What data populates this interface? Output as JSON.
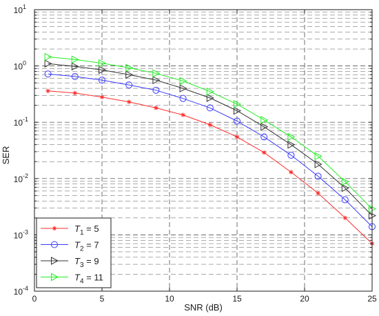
{
  "chart_data": {
    "type": "line",
    "title": "",
    "xlabel": "SNR (dB)",
    "ylabel": "SER",
    "xlim": [
      0,
      25
    ],
    "ylim": [
      0.0001,
      10
    ],
    "yscale": "log",
    "grid": true,
    "legend_position": "bottom-left",
    "xticks": [
      "0",
      "5",
      "10",
      "15",
      "20",
      "25"
    ],
    "yticks": [
      {
        "base": "10",
        "exp": "-4"
      },
      {
        "base": "10",
        "exp": "-3"
      },
      {
        "base": "10",
        "exp": "-2"
      },
      {
        "base": "10",
        "exp": "-1"
      },
      {
        "base": "10",
        "exp": "0"
      },
      {
        "base": "10",
        "exp": "1"
      }
    ],
    "x": [
      1,
      3,
      5,
      7,
      9,
      11,
      13,
      15,
      17,
      19,
      21,
      23,
      25
    ],
    "series": [
      {
        "name": "T1 = 5",
        "label_var": "T",
        "label_sub": "1",
        "label_rest": " = 5",
        "color": "#ff2a2a",
        "marker": "star",
        "values": [
          0.36,
          0.33,
          0.28,
          0.23,
          0.18,
          0.135,
          0.09,
          0.055,
          0.029,
          0.013,
          0.0055,
          0.002,
          0.0007
        ]
      },
      {
        "name": "T2 = 7",
        "label_var": "T",
        "label_sub": "2",
        "label_rest": " = 7",
        "color": "#3a3aff",
        "marker": "circle",
        "values": [
          0.72,
          0.65,
          0.56,
          0.46,
          0.37,
          0.265,
          0.18,
          0.105,
          0.055,
          0.026,
          0.011,
          0.0042,
          0.0014
        ]
      },
      {
        "name": "T3 = 9",
        "label_var": "T",
        "label_sub": "3",
        "label_rest": " = 9",
        "color": "#333333",
        "marker": "triangle-right",
        "values": [
          1.1,
          0.98,
          0.85,
          0.7,
          0.56,
          0.4,
          0.27,
          0.16,
          0.083,
          0.04,
          0.018,
          0.0068,
          0.0022
        ]
      },
      {
        "name": "T4 = 11",
        "label_var": "T",
        "label_sub": "4",
        "label_rest": " = 11",
        "color": "#22ee22",
        "marker": "triangle-right",
        "values": [
          1.45,
          1.3,
          1.12,
          0.93,
          0.74,
          0.54,
          0.35,
          0.21,
          0.11,
          0.055,
          0.025,
          0.0088,
          0.0029
        ]
      }
    ]
  }
}
